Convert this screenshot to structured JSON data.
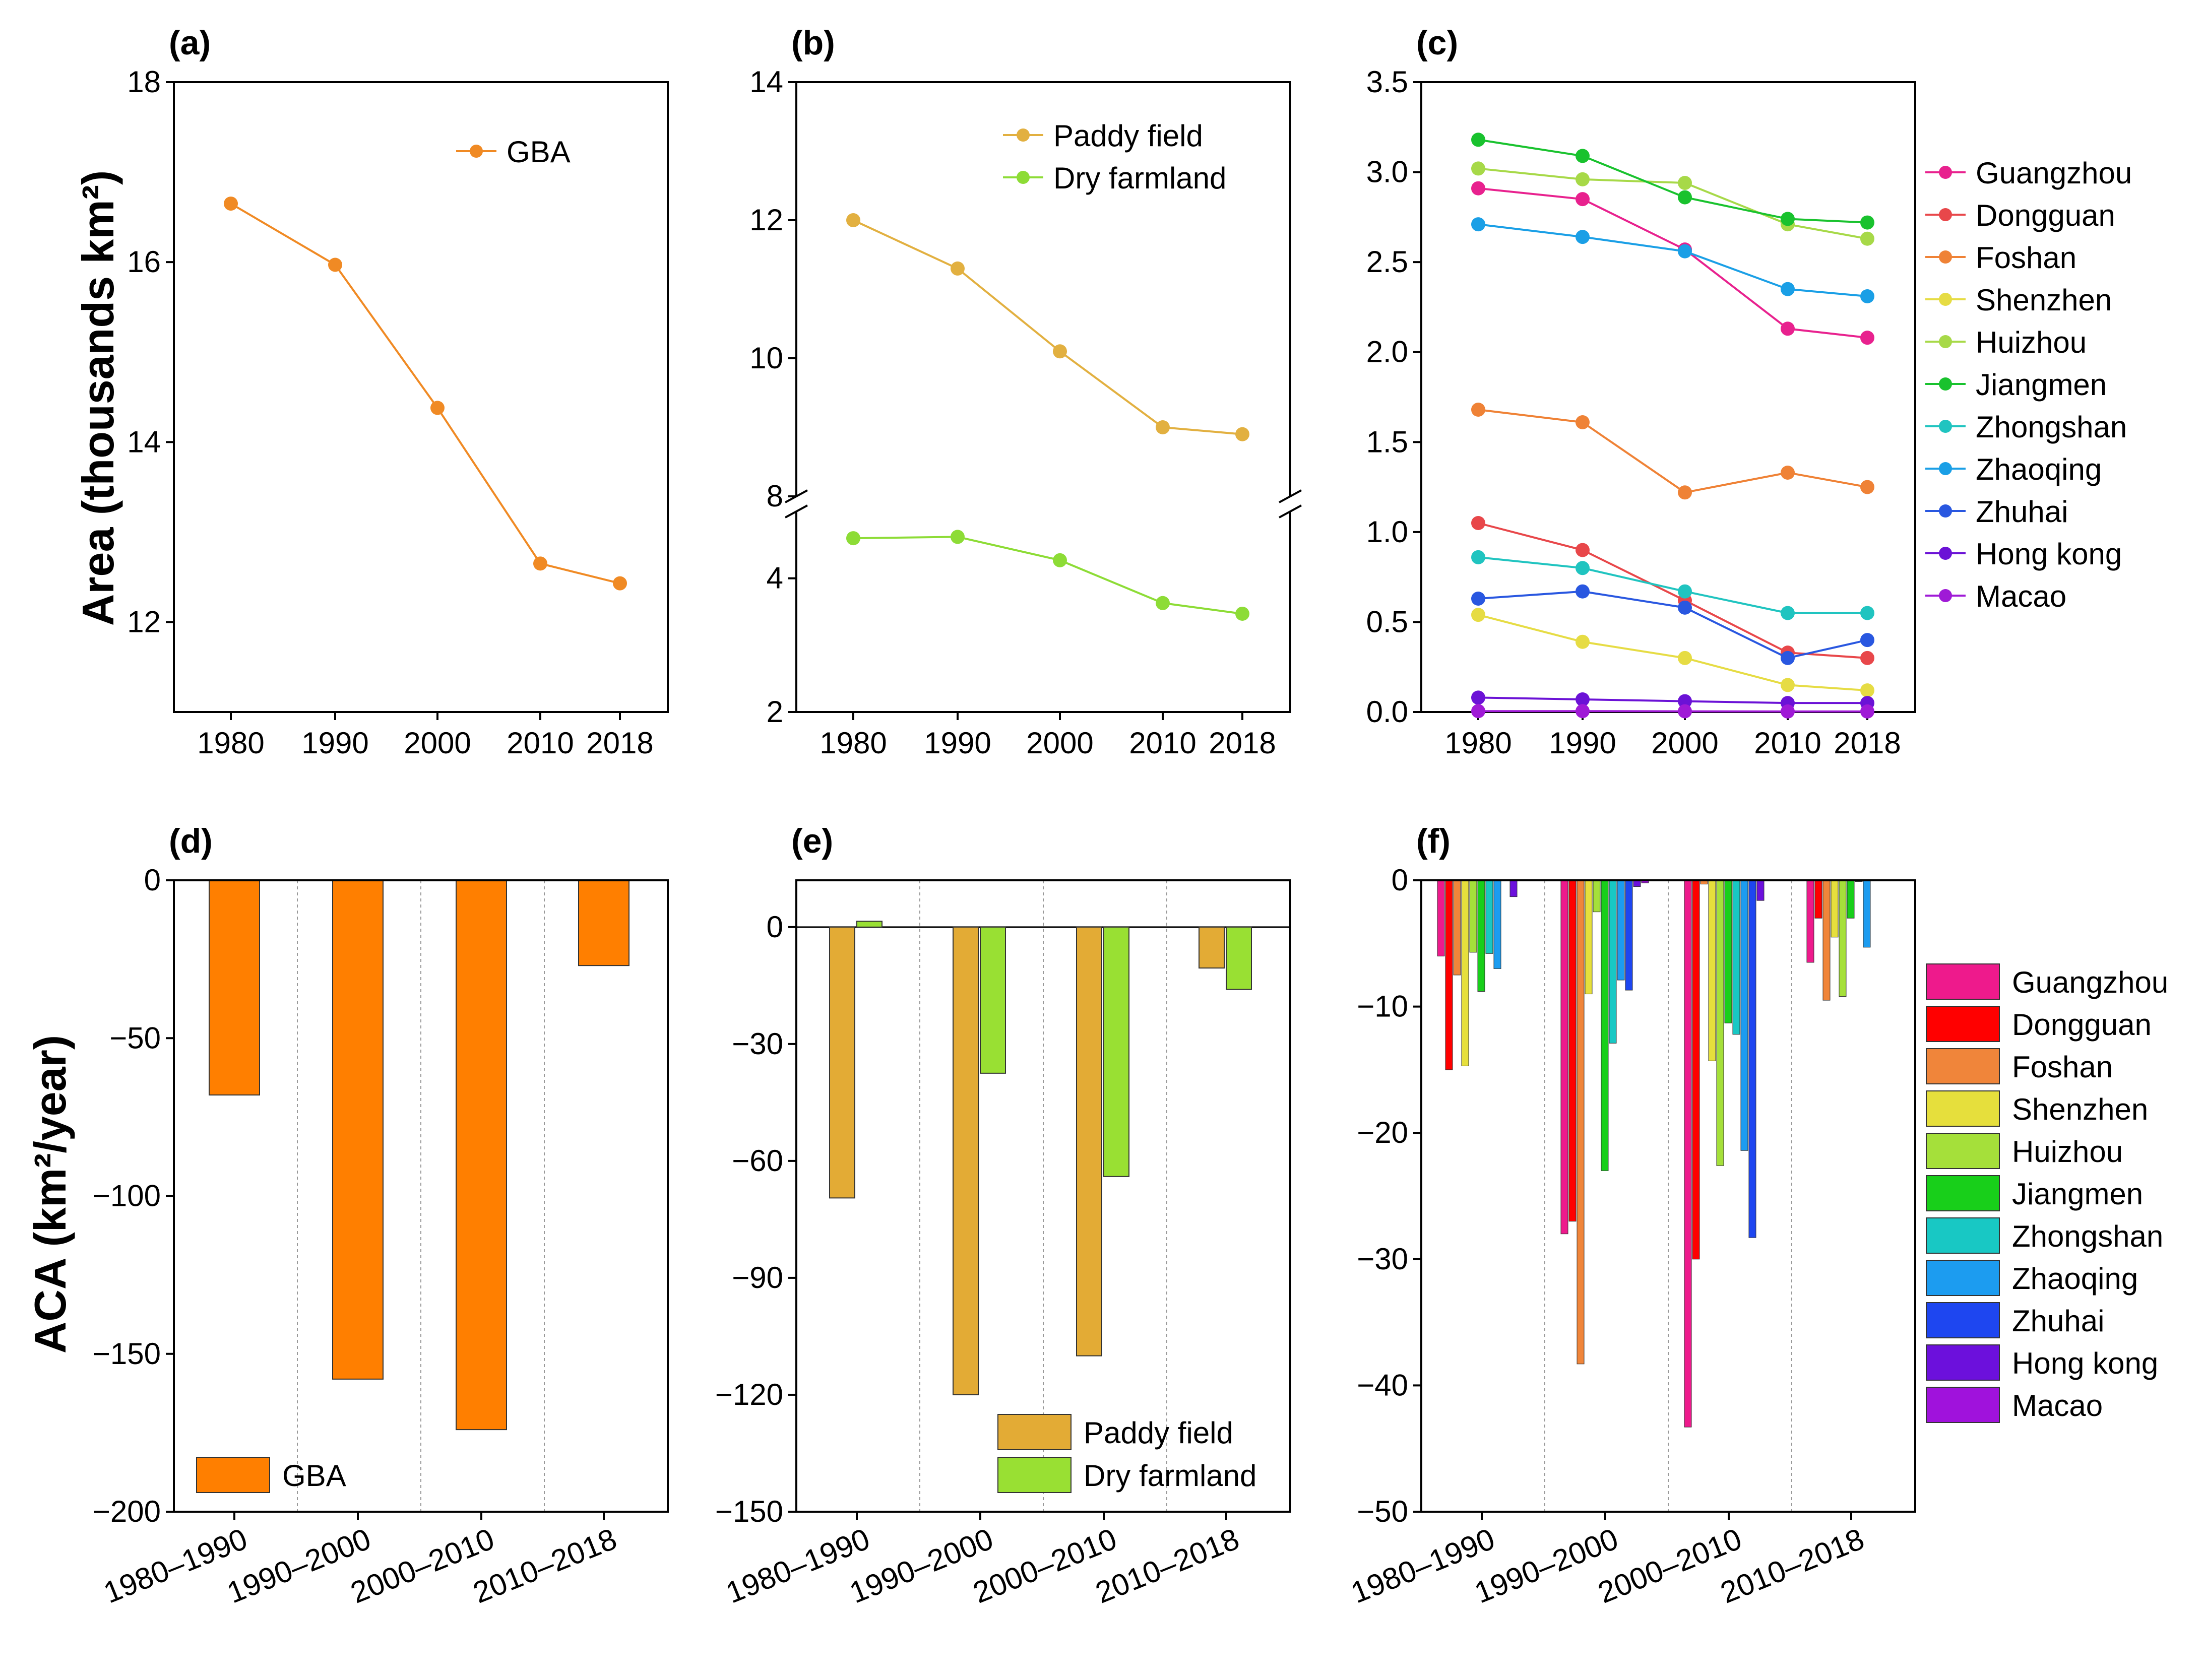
{
  "y_titles": {
    "top": "Area (thousands km²)",
    "bottom": "ACA (km²/year)"
  },
  "colors": {
    "gba_line": "#f08a24",
    "gba_bar": "#ff7f00",
    "paddy_line": "#e2b040",
    "paddy_bar": "#e3ab35",
    "dry_line": "#8ddc36",
    "dry_bar": "#99e033",
    "axis": "#000000",
    "grid": "#999999"
  },
  "city_colors": {
    "line": [
      "#e8218e",
      "#e8474a",
      "#ef8236",
      "#e6dc44",
      "#a7d948",
      "#19c22e",
      "#20c4c0",
      "#1a9fe6",
      "#2957e0",
      "#6b12d6",
      "#9f1ad6"
    ],
    "bar": [
      "#ee1a8c",
      "#ff0000",
      "#f0853a",
      "#e6df3c",
      "#a5e03a",
      "#18cf1a",
      "#18c8c4",
      "#1c9cf0",
      "#1e46f0",
      "#6c10dc",
      "#a012dc"
    ]
  },
  "chart_data": [
    {
      "id": "a",
      "panel_label": "(a)",
      "type": "line",
      "x": [
        "1980",
        "1990",
        "2000",
        "2010",
        "2018"
      ],
      "series": [
        {
          "name": "GBA",
          "values": [
            16.65,
            15.97,
            14.38,
            12.65,
            12.43
          ]
        }
      ],
      "ylim": [
        11,
        18
      ],
      "yticks": [
        "12",
        "14",
        "16",
        "18"
      ],
      "xlabel": "",
      "ylabel": "Area (thousands km²)",
      "legend": "top-right"
    },
    {
      "id": "b",
      "panel_label": "(b)",
      "type": "line",
      "x": [
        "1980",
        "1990",
        "2000",
        "2010",
        "2018"
      ],
      "series": [
        {
          "name": "Paddy field",
          "values": [
            12.0,
            11.3,
            10.1,
            9.0,
            8.9
          ]
        },
        {
          "name": "Dry farmland",
          "values": [
            4.6,
            4.62,
            4.27,
            3.63,
            3.47
          ]
        }
      ],
      "axis_break": "between 6 and 8",
      "ylim_lower": [
        2,
        5
      ],
      "ylim_upper": [
        8,
        14
      ],
      "yticks": [
        "2",
        "4",
        "8",
        "10",
        "12",
        "14"
      ],
      "xlabel": "",
      "ylabel": "",
      "legend": "top-right"
    },
    {
      "id": "c",
      "panel_label": "(c)",
      "type": "line",
      "x": [
        "1980",
        "1990",
        "2000",
        "2010",
        "2018"
      ],
      "series": [
        {
          "name": "Guangzhou",
          "values": [
            2.91,
            2.85,
            2.57,
            2.13,
            2.08
          ]
        },
        {
          "name": "Dongguan",
          "values": [
            1.05,
            0.9,
            0.62,
            0.33,
            0.3
          ]
        },
        {
          "name": "Foshan",
          "values": [
            1.68,
            1.61,
            1.22,
            1.33,
            1.25
          ]
        },
        {
          "name": "Shenzhen",
          "values": [
            0.54,
            0.39,
            0.3,
            0.15,
            0.12
          ]
        },
        {
          "name": "Huizhou",
          "values": [
            3.02,
            2.96,
            2.94,
            2.71,
            2.63
          ]
        },
        {
          "name": "Jiangmen",
          "values": [
            3.18,
            3.09,
            2.86,
            2.74,
            2.72
          ]
        },
        {
          "name": "Zhongshan",
          "values": [
            0.86,
            0.8,
            0.67,
            0.55,
            0.55
          ]
        },
        {
          "name": "Zhaoqing",
          "values": [
            2.71,
            2.64,
            2.56,
            2.35,
            2.31
          ]
        },
        {
          "name": "Zhuhai",
          "values": [
            0.63,
            0.67,
            0.58,
            0.3,
            0.4
          ]
        },
        {
          "name": "Hong kong",
          "values": [
            0.08,
            0.07,
            0.06,
            0.05,
            0.05
          ]
        },
        {
          "name": "Macao",
          "values": [
            0.005,
            0.005,
            0.004,
            0.003,
            0.003
          ]
        }
      ],
      "ylim": [
        0,
        3.5
      ],
      "yticks": [
        "0.0",
        "0.5",
        "1.0",
        "1.5",
        "2.0",
        "2.5",
        "3.0",
        "3.5"
      ],
      "xlabel": "",
      "ylabel": "",
      "legend": "right"
    },
    {
      "id": "d",
      "panel_label": "(d)",
      "type": "bar",
      "categories": [
        "1980–1990",
        "1990–2000",
        "2000–2010",
        "2010–2018"
      ],
      "series": [
        {
          "name": "GBA",
          "values": [
            -68,
            -158,
            -174,
            -27
          ]
        }
      ],
      "ylim": [
        -200,
        0
      ],
      "yticks": [
        "−200",
        "−150",
        "−100",
        "−50",
        "0"
      ],
      "xlabel": "",
      "ylabel": "ACA (km²/year)",
      "legend": "bottom-left"
    },
    {
      "id": "e",
      "panel_label": "(e)",
      "type": "bar",
      "categories": [
        "1980–1990",
        "1990–2000",
        "2000–2010",
        "2010–2018"
      ],
      "series": [
        {
          "name": "Paddy field",
          "values": [
            -69.5,
            -120,
            -110,
            -10.5
          ]
        },
        {
          "name": "Dry farmland",
          "values": [
            1.5,
            -37.5,
            -64,
            -16
          ]
        }
      ],
      "ylim": [
        -150,
        12
      ],
      "yticks": [
        "−150",
        "−120",
        "−90",
        "−60",
        "−30",
        "0"
      ],
      "xlabel": "",
      "ylabel": "",
      "legend": "bottom-right"
    },
    {
      "id": "f",
      "panel_label": "(f)",
      "type": "bar",
      "categories": [
        "1980–1990",
        "1990–2000",
        "2000–2010",
        "2010–2018"
      ],
      "series": [
        {
          "name": "Guangzhou",
          "values": [
            -6,
            -28,
            -43.3,
            -6.5
          ]
        },
        {
          "name": "Dongguan",
          "values": [
            -15,
            -27,
            -30,
            -3
          ]
        },
        {
          "name": "Foshan",
          "values": [
            -7.5,
            -38.3,
            -0.3,
            -9.5
          ]
        },
        {
          "name": "Shenzhen",
          "values": [
            -14.7,
            -9,
            -14.3,
            -4.5
          ]
        },
        {
          "name": "Huizhou",
          "values": [
            -5.7,
            -2.5,
            -22.6,
            -9.2
          ]
        },
        {
          "name": "Jiangmen",
          "values": [
            -8.8,
            -23,
            -11.3,
            -3
          ]
        },
        {
          "name": "Zhongshan",
          "values": [
            -5.8,
            -12.9,
            -12.2,
            -0.1
          ]
        },
        {
          "name": "Zhaoqing",
          "values": [
            -7,
            -7.9,
            -21.4,
            -5.3
          ]
        },
        {
          "name": "Zhuhai",
          "values": [
            0,
            -8.7,
            -28.3,
            0
          ]
        },
        {
          "name": "Hong kong",
          "values": [
            -1.3,
            -0.5,
            -1.6,
            0
          ]
        },
        {
          "name": "Macao",
          "values": [
            0,
            -0.2,
            0,
            0
          ]
        }
      ],
      "ylim": [
        -50,
        0
      ],
      "yticks": [
        "−50",
        "−40",
        "−30",
        "−20",
        "−10",
        "0"
      ],
      "xlabel": "",
      "ylabel": "",
      "legend": "right"
    }
  ]
}
